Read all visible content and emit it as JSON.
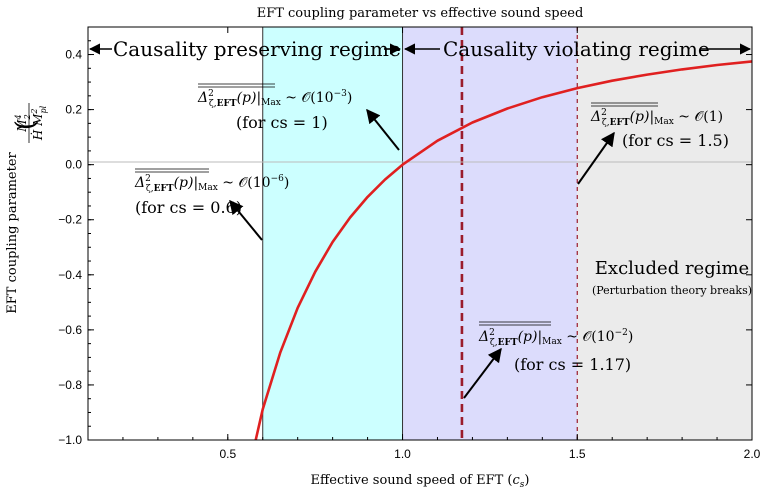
{
  "chart_data": {
    "type": "line",
    "title": "EFT coupling parameter vs effective sound speed",
    "xlabel": "Effective sound speed of EFT (c_s)",
    "ylabel": "EFT coupling parameter",
    "ylabel_expression": "(M_2^4 / (Ḣ M_pl^2))",
    "xlim": [
      0.1,
      2.0
    ],
    "ylim": [
      -1.0,
      0.5
    ],
    "x_ticks": [
      "0.5",
      "1.0",
      "1.5",
      "2.0"
    ],
    "y_ticks": [
      "0.4",
      "0.2",
      "0.0",
      "-0.2",
      "-0.4",
      "-0.6",
      "-0.8",
      "-1.0"
    ],
    "grid": false,
    "series": [
      {
        "color": "#e02020",
        "x": [
          0.58,
          0.6,
          0.65,
          0.7,
          0.75,
          0.8,
          0.85,
          0.9,
          0.95,
          1.0,
          1.1,
          1.2,
          1.3,
          1.4,
          1.5,
          1.6,
          1.7,
          1.8,
          1.9,
          2.0
        ],
        "y": [
          -1.0,
          -0.889,
          -0.683,
          -0.52,
          -0.389,
          -0.281,
          -0.192,
          -0.117,
          -0.054,
          0.0,
          0.087,
          0.153,
          0.204,
          0.245,
          0.278,
          0.305,
          0.327,
          0.346,
          0.362,
          0.375
        ]
      }
    ],
    "regions": [
      {
        "x_range": [
          0.6,
          1.0
        ],
        "color": "#ccffff"
      },
      {
        "x_range": [
          1.0,
          1.5
        ],
        "color": "#dcdcfc"
      },
      {
        "x_range": [
          1.5,
          2.0
        ],
        "color": "#ebebeb"
      }
    ],
    "vertical_lines": [
      {
        "x": 0.6,
        "style": "solid",
        "color": "#333333"
      },
      {
        "x": 1.0,
        "style": "solid",
        "color": "#333333"
      },
      {
        "x": 1.17,
        "style": "dashed",
        "color": "#9b1c2c"
      },
      {
        "x": 1.5,
        "style": "dashed",
        "color": "#9b1c2c"
      }
    ],
    "regime_labels": {
      "preserving": "Causality preserving regime",
      "violating": "Causality violating regime",
      "excluded": "Excluded regime",
      "excluded_sub": "(Perturbation theory breaks)"
    },
    "annotations": [
      {
        "id": "a1",
        "value_expr": "Δ²_ζ,EFT(p)|Max ~ 𝒪(10⁻³)",
        "note": "(for cs = 1)",
        "points_to": [
          1.0,
          0.0
        ]
      },
      {
        "id": "a2",
        "value_expr": "Δ²_ζ,EFT(p)|Max ~ 𝒪(10⁻⁶)",
        "note": "(for cs = 0.6)",
        "points_to": [
          0.6,
          -0.26
        ]
      },
      {
        "id": "a3",
        "value_expr": "Δ²_ζ,EFT(p)|Max ~ 𝒪(1)",
        "note": "(for cs = 1.5)",
        "points_to": [
          1.5,
          -0.05
        ]
      },
      {
        "id": "a4",
        "value_expr": "Δ²_ζ,EFT(p)|Max ~ 𝒪(10⁻²)",
        "note": "(for cs = 1.17)",
        "points_to": [
          1.17,
          -0.87
        ]
      }
    ]
  }
}
